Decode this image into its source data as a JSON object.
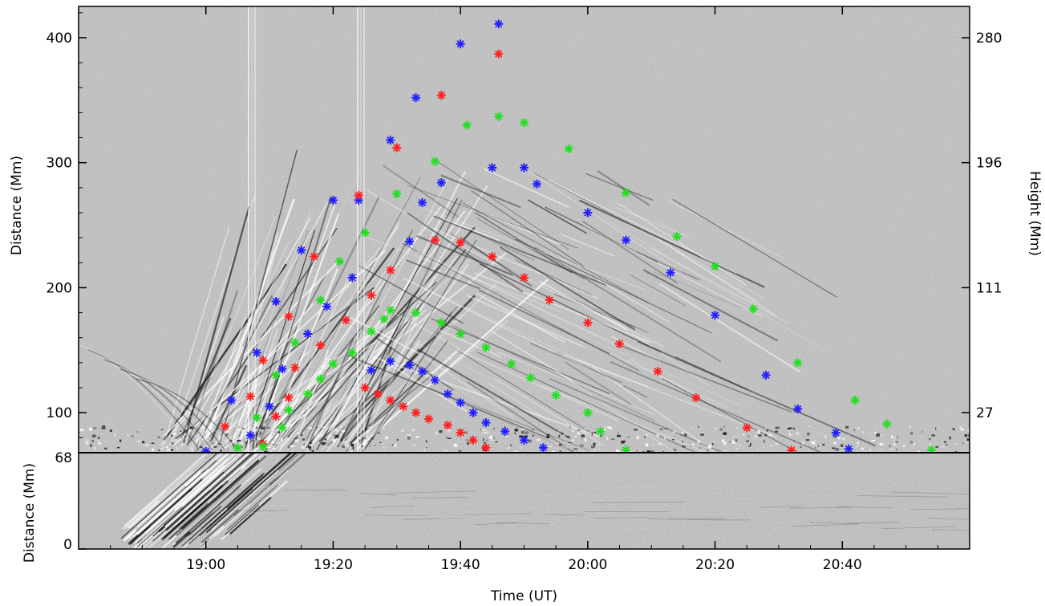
{
  "chart_data": [
    {
      "type": "scatter",
      "panel": "upper",
      "xlabel": "",
      "ylabel": "Distance (Mm)",
      "ylabel_right": "Height (Mm)",
      "xlim": [
        "18:40",
        "21:00"
      ],
      "ylim": [
        68,
        425
      ],
      "y_ticks": [
        100,
        200,
        300,
        400
      ],
      "y_ticks_right": [
        27,
        111,
        196,
        280
      ],
      "background": "running-difference time-distance image (grey)",
      "marker": "asterisk",
      "series": [
        {
          "color": "#2020ff",
          "points": [
            {
              "t": "19:00",
              "d": 69
            },
            {
              "t": "19:04",
              "d": 110
            },
            {
              "t": "19:08",
              "d": 148
            },
            {
              "t": "19:11",
              "d": 189
            },
            {
              "t": "19:15",
              "d": 230
            },
            {
              "t": "19:20",
              "d": 270
            },
            {
              "t": "19:24",
              "d": 270
            },
            {
              "t": "19:29",
              "d": 318
            },
            {
              "t": "19:33",
              "d": 352
            },
            {
              "t": "19:40",
              "d": 395
            },
            {
              "t": "19:46",
              "d": 411
            },
            {
              "t": "19:45",
              "d": 296
            },
            {
              "t": "19:50",
              "d": 296
            },
            {
              "t": "19:52",
              "d": 283
            },
            {
              "t": "19:37",
              "d": 284
            },
            {
              "t": "19:34",
              "d": 268
            },
            {
              "t": "19:32",
              "d": 237
            },
            {
              "t": "19:23",
              "d": 208
            },
            {
              "t": "19:19",
              "d": 185
            },
            {
              "t": "19:16",
              "d": 163
            },
            {
              "t": "19:12",
              "d": 135
            },
            {
              "t": "19:10",
              "d": 105
            },
            {
              "t": "19:07",
              "d": 82
            },
            {
              "t": "19:26",
              "d": 134
            },
            {
              "t": "19:29",
              "d": 141
            },
            {
              "t": "19:32",
              "d": 138
            },
            {
              "t": "19:34",
              "d": 133
            },
            {
              "t": "19:36",
              "d": 126
            },
            {
              "t": "19:38",
              "d": 115
            },
            {
              "t": "19:40",
              "d": 108
            },
            {
              "t": "19:42",
              "d": 100
            },
            {
              "t": "19:44",
              "d": 92
            },
            {
              "t": "19:47",
              "d": 85
            },
            {
              "t": "19:50",
              "d": 78
            },
            {
              "t": "19:53",
              "d": 72
            },
            {
              "t": "20:00",
              "d": 260
            },
            {
              "t": "20:06",
              "d": 238
            },
            {
              "t": "20:13",
              "d": 212
            },
            {
              "t": "20:20",
              "d": 178
            },
            {
              "t": "20:28",
              "d": 130
            },
            {
              "t": "20:33",
              "d": 103
            },
            {
              "t": "20:39",
              "d": 84
            },
            {
              "t": "20:41",
              "d": 71
            }
          ]
        },
        {
          "color": "#ff2020",
          "points": [
            {
              "t": "19:03",
              "d": 89
            },
            {
              "t": "19:07",
              "d": 113
            },
            {
              "t": "19:09",
              "d": 142
            },
            {
              "t": "19:13",
              "d": 177
            },
            {
              "t": "19:17",
              "d": 225
            },
            {
              "t": "19:24",
              "d": 274
            },
            {
              "t": "19:30",
              "d": 312
            },
            {
              "t": "19:37",
              "d": 354
            },
            {
              "t": "19:46",
              "d": 387
            },
            {
              "t": "19:36",
              "d": 238
            },
            {
              "t": "19:40",
              "d": 236
            },
            {
              "t": "19:45",
              "d": 225
            },
            {
              "t": "19:50",
              "d": 208
            },
            {
              "t": "19:54",
              "d": 190
            },
            {
              "t": "20:00",
              "d": 172
            },
            {
              "t": "20:05",
              "d": 155
            },
            {
              "t": "20:11",
              "d": 133
            },
            {
              "t": "20:17",
              "d": 112
            },
            {
              "t": "20:25",
              "d": 88
            },
            {
              "t": "20:32",
              "d": 70
            },
            {
              "t": "19:29",
              "d": 214
            },
            {
              "t": "19:26",
              "d": 194
            },
            {
              "t": "19:22",
              "d": 174
            },
            {
              "t": "19:18",
              "d": 154
            },
            {
              "t": "19:14",
              "d": 136
            },
            {
              "t": "19:13",
              "d": 112
            },
            {
              "t": "19:11",
              "d": 97
            },
            {
              "t": "19:09",
              "d": 75
            },
            {
              "t": "19:25",
              "d": 120
            },
            {
              "t": "19:27",
              "d": 115
            },
            {
              "t": "19:29",
              "d": 110
            },
            {
              "t": "19:31",
              "d": 105
            },
            {
              "t": "19:33",
              "d": 100
            },
            {
              "t": "19:35",
              "d": 95
            },
            {
              "t": "19:38",
              "d": 90
            },
            {
              "t": "19:40",
              "d": 84
            },
            {
              "t": "19:42",
              "d": 78
            },
            {
              "t": "19:44",
              "d": 72
            }
          ]
        },
        {
          "color": "#20e020",
          "points": [
            {
              "t": "19:05",
              "d": 72
            },
            {
              "t": "19:08",
              "d": 96
            },
            {
              "t": "19:11",
              "d": 130
            },
            {
              "t": "19:14",
              "d": 156
            },
            {
              "t": "19:18",
              "d": 190
            },
            {
              "t": "19:21",
              "d": 221
            },
            {
              "t": "19:25",
              "d": 244
            },
            {
              "t": "19:30",
              "d": 275
            },
            {
              "t": "19:36",
              "d": 301
            },
            {
              "t": "19:41",
              "d": 330
            },
            {
              "t": "19:46",
              "d": 337
            },
            {
              "t": "19:50",
              "d": 332
            },
            {
              "t": "19:57",
              "d": 311
            },
            {
              "t": "20:06",
              "d": 276
            },
            {
              "t": "20:14",
              "d": 241
            },
            {
              "t": "20:20",
              "d": 217
            },
            {
              "t": "20:26",
              "d": 183
            },
            {
              "t": "20:33",
              "d": 140
            },
            {
              "t": "20:42",
              "d": 110
            },
            {
              "t": "20:47",
              "d": 91
            },
            {
              "t": "20:54",
              "d": 70
            },
            {
              "t": "19:26",
              "d": 165
            },
            {
              "t": "19:28",
              "d": 175
            },
            {
              "t": "19:29",
              "d": 182
            },
            {
              "t": "19:33",
              "d": 180
            },
            {
              "t": "19:37",
              "d": 172
            },
            {
              "t": "19:40",
              "d": 163
            },
            {
              "t": "19:44",
              "d": 152
            },
            {
              "t": "19:48",
              "d": 139
            },
            {
              "t": "19:51",
              "d": 128
            },
            {
              "t": "19:55",
              "d": 114
            },
            {
              "t": "20:00",
              "d": 100
            },
            {
              "t": "20:02",
              "d": 85
            },
            {
              "t": "20:06",
              "d": 70
            },
            {
              "t": "19:23",
              "d": 148
            },
            {
              "t": "19:20",
              "d": 139
            },
            {
              "t": "19:18",
              "d": 127
            },
            {
              "t": "19:16",
              "d": 115
            },
            {
              "t": "19:13",
              "d": 102
            },
            {
              "t": "19:12",
              "d": 88
            },
            {
              "t": "19:09",
              "d": 73
            }
          ]
        }
      ]
    },
    {
      "type": "heatmap",
      "panel": "lower",
      "xlabel": "Time (UT)",
      "ylabel": "Distance (Mm)",
      "x_ticks": [
        "19:00",
        "19:20",
        "19:40",
        "20:00",
        "20:20",
        "20:40"
      ],
      "xlim": [
        "18:40",
        "21:00"
      ],
      "ylim": [
        0,
        68
      ],
      "y_ticks": [
        0,
        68
      ],
      "background": "running-difference time-distance image (grey)"
    }
  ]
}
